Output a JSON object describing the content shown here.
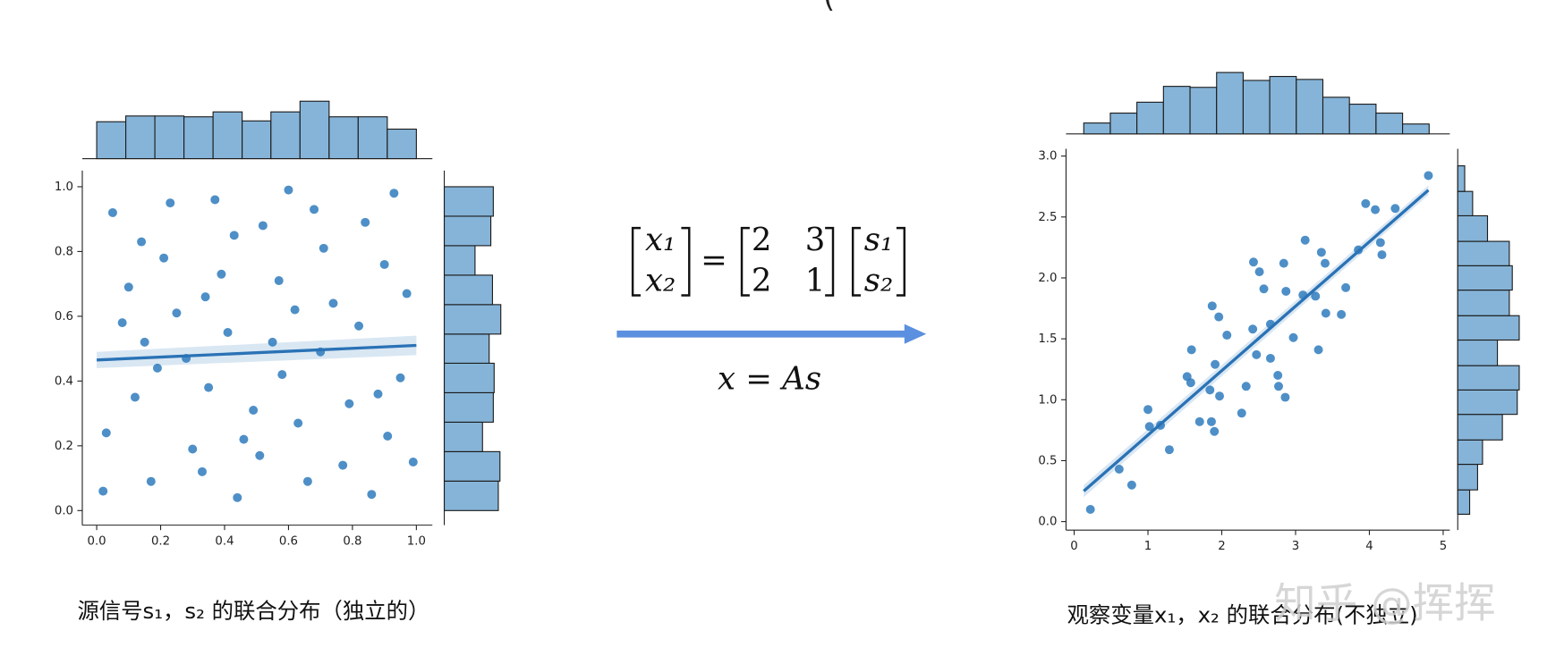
{
  "top_fragment": "(",
  "watermark": "知乎 @挥挥",
  "equation": {
    "lhs": [
      "x₁",
      "x₂"
    ],
    "equals": "=",
    "A": [
      [
        2,
        3
      ],
      [
        2,
        1
      ]
    ],
    "rhs": [
      "s₁",
      "s₂"
    ],
    "compact": "x = As"
  },
  "chart_data": [
    {
      "type": "scatter",
      "caption": "源信号s₁，s₂ 的联合分布（独立的）",
      "color": "#2f7bbd",
      "x": [
        0.05,
        0.12,
        0.21,
        0.33,
        0.41,
        0.52,
        0.63,
        0.74,
        0.86,
        0.95,
        0.08,
        0.17,
        0.28,
        0.37,
        0.46,
        0.57,
        0.68,
        0.79,
        0.9,
        0.99,
        0.03,
        0.14,
        0.25,
        0.35,
        0.44,
        0.55,
        0.66,
        0.71,
        0.82,
        0.93,
        0.1,
        0.19,
        0.3,
        0.39,
        0.49,
        0.6,
        0.7,
        0.77,
        0.88,
        0.97,
        0.02,
        0.23,
        0.43,
        0.51,
        0.62,
        0.84,
        0.15,
        0.34,
        0.58,
        0.91
      ],
      "y": [
        0.92,
        0.35,
        0.78,
        0.12,
        0.55,
        0.88,
        0.27,
        0.64,
        0.05,
        0.41,
        0.58,
        0.09,
        0.47,
        0.96,
        0.22,
        0.71,
        0.93,
        0.33,
        0.76,
        0.15,
        0.24,
        0.83,
        0.61,
        0.38,
        0.04,
        0.52,
        0.09,
        0.81,
        0.57,
        0.98,
        0.69,
        0.44,
        0.19,
        0.73,
        0.31,
        0.99,
        0.49,
        0.14,
        0.36,
        0.67,
        0.06,
        0.95,
        0.85,
        0.17,
        0.62,
        0.89,
        0.52,
        0.66,
        0.42,
        0.23
      ],
      "xlim": [
        -0.045,
        1.05
      ],
      "ylim": [
        -0.045,
        1.05
      ],
      "xticks": [
        {
          "value": 0,
          "label": "0.0"
        },
        0.2,
        0.4,
        0.6,
        0.8,
        {
          "value": 1,
          "label": "1.0"
        }
      ],
      "yticks": [
        {
          "value": 0,
          "label": "0.0"
        },
        0.2,
        0.4,
        0.6,
        0.8,
        {
          "value": 1,
          "label": "1.0"
        }
      ],
      "regression": {
        "x": [
          0,
          1
        ],
        "y": [
          0.465,
          0.51
        ],
        "ci_lower": [
          0.44,
          0.48
        ],
        "ci_upper": [
          0.49,
          0.54
        ]
      },
      "marginal_x": {
        "bins": [
          0,
          0.091,
          0.182,
          0.273,
          0.364,
          0.455,
          0.545,
          0.636,
          0.727,
          0.818,
          0.909,
          1
        ],
        "counts": [
          45,
          52,
          52,
          51,
          57,
          46,
          57,
          70,
          51,
          51,
          36
        ]
      },
      "marginal_y": {
        "bins": [
          0,
          0.091,
          0.182,
          0.273,
          0.364,
          0.455,
          0.545,
          0.636,
          0.727,
          0.818,
          0.909,
          1
        ],
        "counts": [
          65,
          67,
          46,
          59,
          60,
          54,
          68,
          58,
          37,
          56,
          59
        ]
      }
    },
    {
      "type": "scatter",
      "caption": "观察变量x₁，x₂ 的联合分布(不独立)",
      "color": "#2f7bbd",
      "x": [
        2.86,
        1.29,
        2.76,
        1.02,
        2.47,
        3.68,
        2.07,
        3.4,
        1.87,
        3.13,
        1.9,
        0.61,
        1.97,
        3.62,
        1.58,
        3.27,
        4.15,
        2.57,
        4.08,
        2.43,
        0.78,
        2.77,
        2.33,
        1.84,
        1.0,
        2.66,
        1.59,
        3.85,
        3.35,
        4.8,
        2.27,
        1.7,
        1.17,
        2.97,
        1.91,
        4.17,
        2.87,
        1.96,
        2.84,
        3.95,
        0.22,
        3.31,
        3.41,
        1.53,
        3.1,
        4.35,
        1.86,
        2.66,
        2.42,
        2.51
      ],
      "y": [
        1.02,
        0.59,
        1.2,
        0.78,
        1.37,
        1.92,
        1.53,
        2.12,
        1.77,
        2.31,
        0.74,
        0.43,
        1.03,
        1.7,
        1.14,
        1.85,
        2.29,
        1.91,
        2.56,
        2.13,
        0.3,
        1.11,
        1.11,
        1.08,
        0.92,
        1.62,
        1.41,
        2.23,
        2.21,
        2.84,
        0.89,
        0.82,
        0.79,
        1.51,
        1.29,
        2.19,
        1.89,
        1.68,
        2.12,
        2.61,
        0.1,
        1.41,
        1.71,
        1.19,
        1.86,
        2.57,
        0.82,
        1.34,
        1.58,
        2.05
      ],
      "xlim": [
        -0.11,
        5.09
      ],
      "ylim": [
        -0.07,
        3.06
      ],
      "xticks": [
        0,
        1,
        2,
        3,
        4,
        5
      ],
      "yticks": [
        {
          "value": 0,
          "label": "0.0"
        },
        0.5,
        {
          "value": 1,
          "label": "1.0"
        },
        1.5,
        {
          "value": 2,
          "label": "2.0"
        },
        2.5,
        {
          "value": 3,
          "label": "3.0"
        }
      ],
      "regression": {
        "x": [
          0.13,
          4.8
        ],
        "y": [
          0.25,
          2.72
        ],
        "ci_lower": [
          0.2,
          2.68
        ],
        "ci_upper": [
          0.3,
          2.76
        ]
      },
      "marginal_x": {
        "bins": [
          0.13,
          0.49,
          0.85,
          1.21,
          1.57,
          1.93,
          2.29,
          2.65,
          3.01,
          3.37,
          3.73,
          4.09,
          4.45,
          4.81
        ],
        "counts": [
          11,
          21,
          32,
          48,
          47,
          62,
          54,
          58,
          55,
          37,
          30,
          21,
          10
        ]
      },
      "marginal_y": {
        "bins": [
          0.06,
          0.26,
          0.47,
          0.67,
          0.88,
          1.08,
          1.28,
          1.49,
          1.69,
          1.9,
          2.1,
          2.3,
          2.51,
          2.71,
          2.92
        ],
        "counts": [
          12,
          20,
          25,
          45,
          60,
          62,
          40,
          62,
          52,
          55,
          52,
          30,
          15,
          7
        ]
      }
    }
  ]
}
